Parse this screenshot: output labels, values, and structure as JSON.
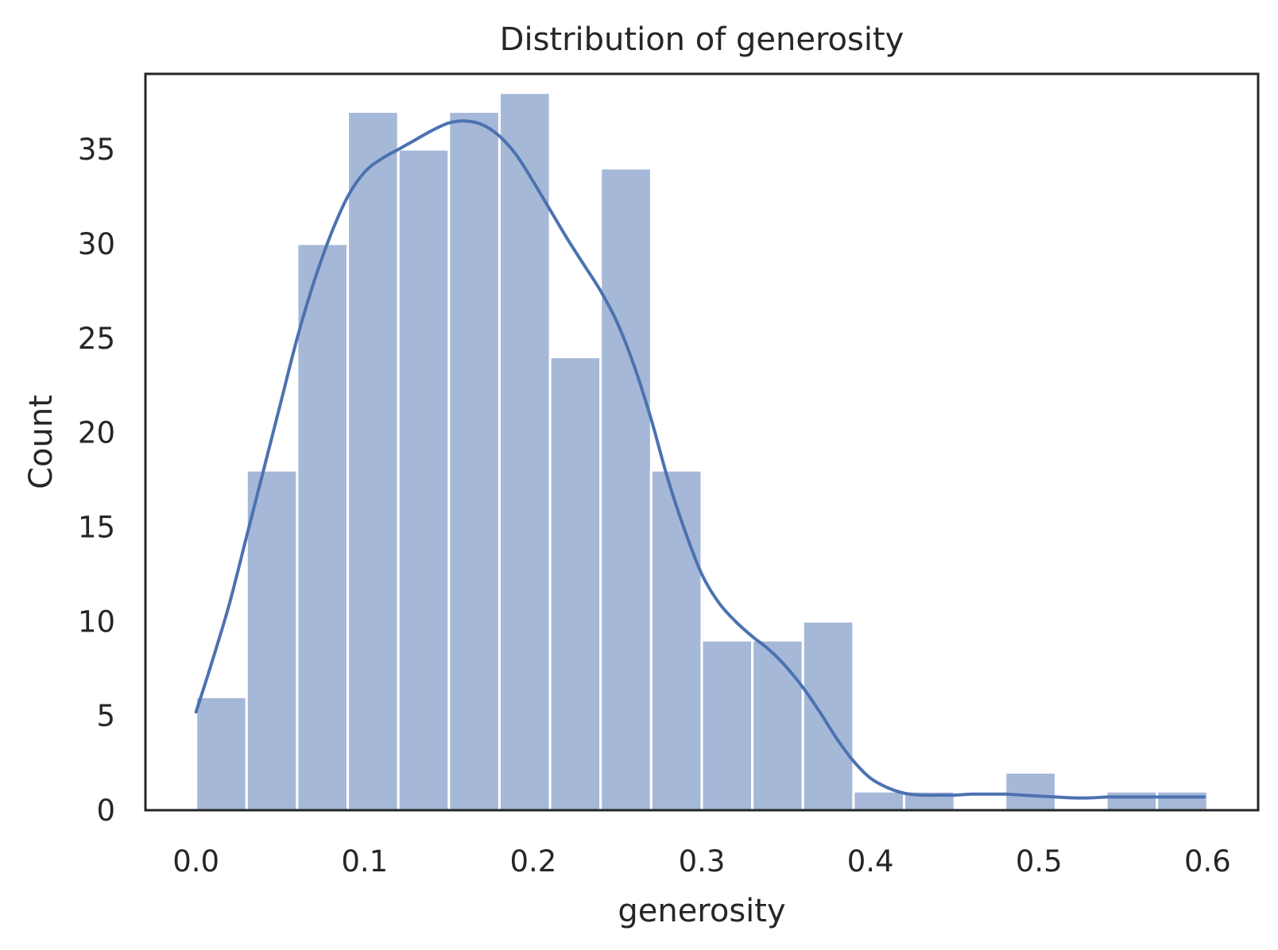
{
  "chart_data": {
    "type": "bar",
    "title": "Distribution of generosity",
    "xlabel": "generosity",
    "ylabel": "Count",
    "xlim": [
      -0.03,
      0.63
    ],
    "ylim": [
      0,
      39
    ],
    "xticks": [
      "0.0",
      "0.1",
      "0.2",
      "0.3",
      "0.4",
      "0.5",
      "0.6"
    ],
    "xtick_values": [
      0.0,
      0.1,
      0.2,
      0.3,
      0.4,
      0.5,
      0.6
    ],
    "yticks": [
      "0",
      "5",
      "10",
      "15",
      "20",
      "25",
      "30",
      "35"
    ],
    "ytick_values": [
      0,
      5,
      10,
      15,
      20,
      25,
      30,
      35
    ],
    "grid": false,
    "bins": [
      {
        "x0": 0.0,
        "x1": 0.03,
        "count": 6
      },
      {
        "x0": 0.03,
        "x1": 0.06,
        "count": 18
      },
      {
        "x0": 0.06,
        "x1": 0.09,
        "count": 30
      },
      {
        "x0": 0.09,
        "x1": 0.12,
        "count": 37
      },
      {
        "x0": 0.12,
        "x1": 0.15,
        "count": 35
      },
      {
        "x0": 0.15,
        "x1": 0.18,
        "count": 37
      },
      {
        "x0": 0.18,
        "x1": 0.21,
        "count": 38
      },
      {
        "x0": 0.21,
        "x1": 0.24,
        "count": 24
      },
      {
        "x0": 0.24,
        "x1": 0.27,
        "count": 34
      },
      {
        "x0": 0.27,
        "x1": 0.3,
        "count": 18
      },
      {
        "x0": 0.3,
        "x1": 0.33,
        "count": 9
      },
      {
        "x0": 0.33,
        "x1": 0.36,
        "count": 9
      },
      {
        "x0": 0.36,
        "x1": 0.39,
        "count": 10
      },
      {
        "x0": 0.39,
        "x1": 0.42,
        "count": 1
      },
      {
        "x0": 0.42,
        "x1": 0.45,
        "count": 1
      },
      {
        "x0": 0.45,
        "x1": 0.48,
        "count": 0
      },
      {
        "x0": 0.48,
        "x1": 0.51,
        "count": 2
      },
      {
        "x0": 0.51,
        "x1": 0.54,
        "count": 0
      },
      {
        "x0": 0.54,
        "x1": 0.57,
        "count": 1
      },
      {
        "x0": 0.57,
        "x1": 0.6,
        "count": 1
      }
    ],
    "kde": {
      "x": [
        0.0,
        0.01,
        0.02,
        0.03,
        0.04,
        0.05,
        0.06,
        0.07,
        0.08,
        0.09,
        0.1,
        0.11,
        0.12,
        0.13,
        0.14,
        0.15,
        0.16,
        0.17,
        0.18,
        0.19,
        0.2,
        0.21,
        0.22,
        0.23,
        0.24,
        0.25,
        0.26,
        0.27,
        0.28,
        0.29,
        0.3,
        0.31,
        0.32,
        0.33,
        0.34,
        0.35,
        0.36,
        0.37,
        0.38,
        0.39,
        0.4,
        0.41,
        0.42,
        0.43,
        0.44,
        0.45,
        0.46,
        0.47,
        0.48,
        0.49,
        0.5,
        0.51,
        0.52,
        0.53,
        0.54,
        0.55,
        0.56,
        0.57,
        0.58,
        0.598
      ],
      "y": [
        5.2,
        8.0,
        11.0,
        14.5,
        18.0,
        21.5,
        25.0,
        28.0,
        30.5,
        32.5,
        33.8,
        34.5,
        35.0,
        35.5,
        36.0,
        36.4,
        36.5,
        36.3,
        35.7,
        34.7,
        33.3,
        31.8,
        30.3,
        28.9,
        27.5,
        25.8,
        23.5,
        20.7,
        17.5,
        14.8,
        12.5,
        11.0,
        10.0,
        9.2,
        8.5,
        7.6,
        6.5,
        5.2,
        3.8,
        2.6,
        1.7,
        1.2,
        0.9,
        0.8,
        0.8,
        0.8,
        0.85,
        0.85,
        0.85,
        0.8,
        0.75,
        0.7,
        0.65,
        0.65,
        0.7,
        0.7,
        0.7,
        0.7,
        0.7,
        0.7
      ]
    },
    "colors": {
      "bar": "#a6b8d8",
      "kde": "#4c72b0",
      "frame": "#262626"
    }
  }
}
